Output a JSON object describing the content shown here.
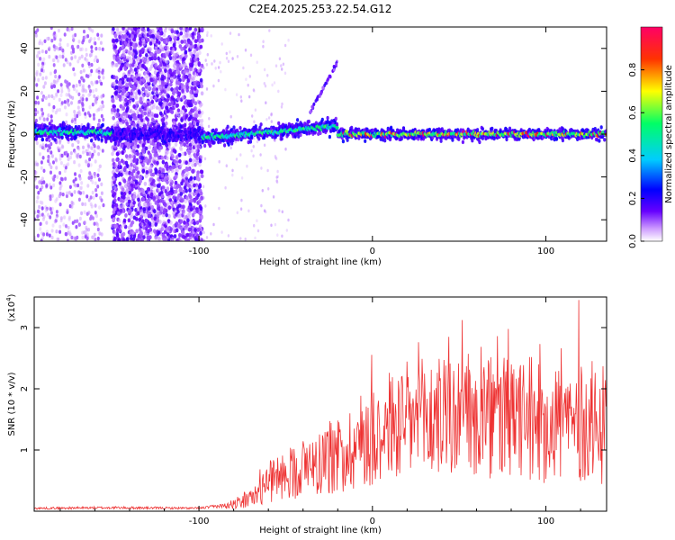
{
  "figure": {
    "title": "C2E4.2025.253.22.54.G12"
  },
  "chart_data": [
    {
      "type": "heatmap",
      "xlabel": "Height of straight line (km)",
      "ylabel": "Frequency (Hz)",
      "xlim": [
        -195,
        135
      ],
      "ylim": [
        -50,
        50
      ],
      "xticks": [
        -100,
        0,
        100
      ],
      "yticks": [
        -40,
        -20,
        0,
        20,
        40
      ],
      "colorbar": {
        "label": "Normalized spectral amplitude",
        "range": [
          0,
          1
        ],
        "ticks": [
          "0.0",
          "0.2",
          "0.4",
          "0.6",
          "0.8"
        ],
        "tick_values": [
          0.0,
          0.2,
          0.4,
          0.6,
          0.8
        ],
        "colormap": [
          "#ffffff",
          "#cc99ff",
          "#6600ff",
          "#0000ff",
          "#00ccff",
          "#00ff66",
          "#ffff00",
          "#ff3300",
          "#ff0066"
        ]
      },
      "regions": [
        {
          "x_range": [
            -195,
            -155
          ],
          "description": "sparse noise",
          "band_center_hz": 1
        },
        {
          "x_range": [
            -150,
            -98
          ],
          "description": "dense broadband noise",
          "band_center_hz": 0
        },
        {
          "x_range": [
            -98,
            -20
          ],
          "description": "rising main band",
          "band_center_hz": 4
        },
        {
          "x_range": [
            -20,
            135
          ],
          "description": "steady main band",
          "band_center_hz": 0
        }
      ]
    },
    {
      "type": "line",
      "xlabel": "Height of straight line (km)",
      "ylabel": "SNR (10 * v/v)",
      "y_multiplier": "(x10",
      "y_multiplier_exp": "4",
      "y_multiplier_close": ")",
      "xlim": [
        -195,
        135
      ],
      "ylim": [
        0,
        3.5
      ],
      "xticks": [
        -100,
        0,
        100
      ],
      "yticks": [
        1,
        2,
        3
      ],
      "series": [
        {
          "name": "SNR",
          "color": "#ee3333",
          "envelope_x": [
            -195,
            -150,
            -100,
            -85,
            -70,
            -60,
            -45,
            -30,
            -20,
            -10,
            0,
            20,
            40,
            60,
            80,
            100,
            115,
            120,
            135
          ],
          "envelope_y": [
            0.05,
            0.06,
            0.05,
            0.1,
            0.25,
            0.55,
            0.8,
            1.0,
            1.1,
            1.3,
            1.6,
            1.75,
            1.85,
            1.85,
            1.8,
            1.8,
            1.75,
            1.7,
            1.7
          ],
          "peak_x": 119,
          "peak_y": 3.45
        }
      ]
    }
  ]
}
